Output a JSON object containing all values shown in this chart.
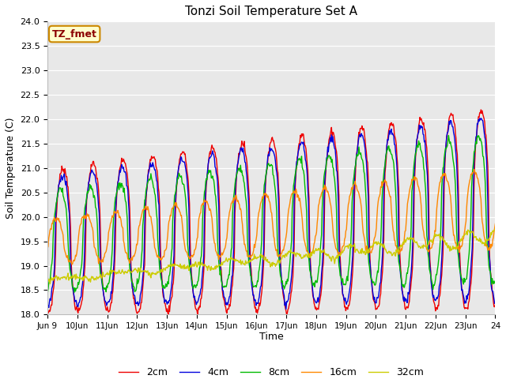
{
  "title": "Tonzi Soil Temperature Set A",
  "ylabel": "Soil Temperature (C)",
  "xlabel": "Time",
  "ylim": [
    18.0,
    24.0
  ],
  "yticks": [
    18.0,
    18.5,
    19.0,
    19.5,
    20.0,
    20.5,
    21.0,
    21.5,
    22.0,
    22.5,
    23.0,
    23.5,
    24.0
  ],
  "annotation": "TZ_fmet",
  "line_colors": {
    "2cm": "#ee0000",
    "4cm": "#0000dd",
    "8cm": "#00bb00",
    "16cm": "#ff8800",
    "32cm": "#cccc00"
  },
  "legend_labels": [
    "2cm",
    "4cm",
    "8cm",
    "16cm",
    "32cm"
  ],
  "bg_color": "#e8e8e8",
  "xtick_labels": [
    "Jun 9",
    "10Jun",
    "11Jun",
    "12Jun",
    "13Jun",
    "14Jun",
    "15Jun",
    "16Jun",
    "17Jun",
    "18Jun",
    "19Jun",
    "20Jun",
    "21Jun",
    "22Jun",
    "23Jun",
    "24"
  ],
  "n_points": 720,
  "xlim_days": 15
}
